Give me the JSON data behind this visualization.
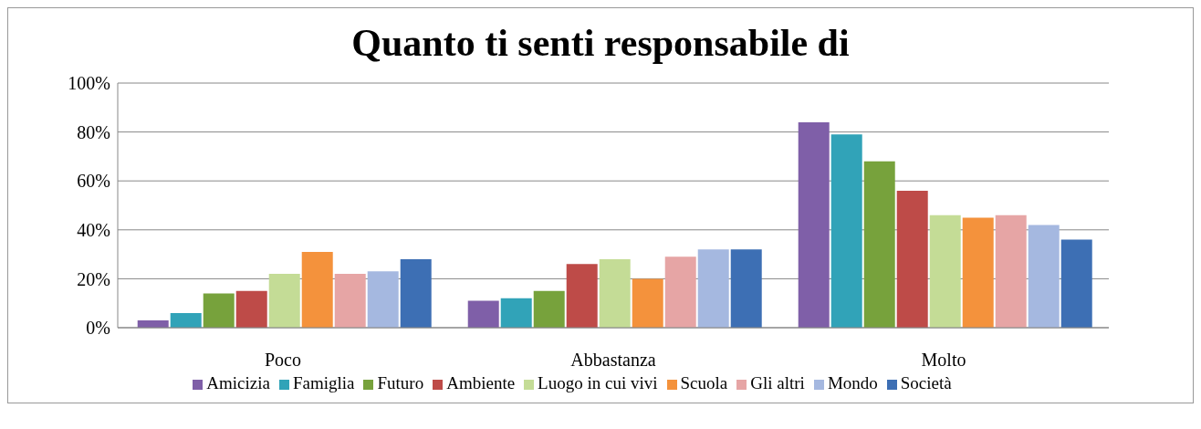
{
  "chart_data": {
    "type": "bar",
    "title": "Quanto ti senti responsabile di",
    "categories": [
      "Poco",
      "Abbastanza",
      "Molto"
    ],
    "series": [
      {
        "name": "Amicizia",
        "color": "#7f5fa8",
        "values": [
          3,
          11,
          84
        ]
      },
      {
        "name": "Famiglia",
        "color": "#31a3b8",
        "values": [
          6,
          12,
          79
        ]
      },
      {
        "name": "Futuro",
        "color": "#77a23c",
        "values": [
          14,
          15,
          68
        ]
      },
      {
        "name": "Ambiente",
        "color": "#be4b48",
        "values": [
          15,
          26,
          56
        ]
      },
      {
        "name": "Luogo in cui vivi",
        "color": "#c4dc96",
        "values": [
          22,
          28,
          46
        ]
      },
      {
        "name": "Scuola",
        "color": "#f4923c",
        "values": [
          31,
          20,
          45
        ]
      },
      {
        "name": "Gli altri",
        "color": "#e6a5a5",
        "values": [
          22,
          29,
          46
        ]
      },
      {
        "name": "Mondo",
        "color": "#a5b8e0",
        "values": [
          23,
          32,
          42
        ]
      },
      {
        "name": "Società",
        "color": "#3d6fb4",
        "values": [
          28,
          32,
          36
        ]
      }
    ],
    "ylim": [
      0,
      100
    ],
    "yticks": [
      {
        "value": 0,
        "label": "0%"
      },
      {
        "value": 20,
        "label": "20%"
      },
      {
        "value": 40,
        "label": "40%"
      },
      {
        "value": 60,
        "label": "60%"
      },
      {
        "value": 80,
        "label": "80%"
      },
      {
        "value": 100,
        "label": "100%"
      }
    ],
    "grid": "y",
    "legend": "bottom"
  }
}
